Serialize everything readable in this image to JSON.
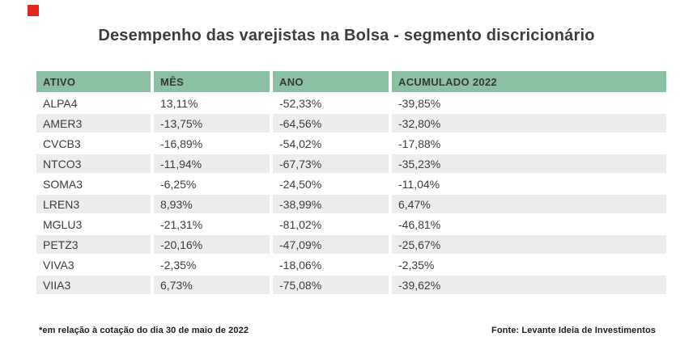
{
  "title": "Desempenho das varejistas na Bolsa - segmento discricionário",
  "brand": {
    "logo_color": "#e3261f"
  },
  "colors": {
    "header_bg": "#8cc0a2",
    "stripe_bg": "#ededed",
    "text": "#3b3b3b",
    "background": "#ffffff"
  },
  "chart_data": {
    "type": "table",
    "title": "Desempenho das varejistas na Bolsa - segmento discricionário",
    "columns": [
      "ATIVO",
      "MÊS",
      "ANO",
      "ACUMULADO 2022"
    ],
    "rows": [
      [
        "ALPA4",
        "13,11%",
        "-52,33%",
        "-39,85%"
      ],
      [
        "AMER3",
        "-13,75%",
        "-64,56%",
        "-32,80%"
      ],
      [
        "CVCB3",
        "-16,89%",
        "-54,02%",
        "-17,88%"
      ],
      [
        "NTCO3",
        "-11,94%",
        "-67,73%",
        "-35,23%"
      ],
      [
        "SOMA3",
        "-6,25%",
        "-24,50%",
        "-11,04%"
      ],
      [
        "LREN3",
        "8,93%",
        "-38,99%",
        "6,47%"
      ],
      [
        "MGLU3",
        "-21,31%",
        "-81,02%",
        "-46,81%"
      ],
      [
        "PETZ3",
        "-20,16%",
        "-47,09%",
        "-25,67%"
      ],
      [
        "VIVA3",
        "-2,35%",
        "-18,06%",
        "-2,35%"
      ],
      [
        "VIIA3",
        "6,73%",
        "-75,08%",
        "-39,62%"
      ]
    ],
    "categories": [
      "ALPA4",
      "AMER3",
      "CVCB3",
      "NTCO3",
      "SOMA3",
      "LREN3",
      "MGLU3",
      "PETZ3",
      "VIVA3",
      "VIIA3"
    ],
    "series": [
      {
        "name": "MÊS",
        "values": [
          13.11,
          -13.75,
          -16.89,
          -11.94,
          -6.25,
          8.93,
          -21.31,
          -20.16,
          -2.35,
          6.73
        ]
      },
      {
        "name": "ANO",
        "values": [
          -52.33,
          -64.56,
          -54.02,
          -67.73,
          -24.5,
          -38.99,
          -81.02,
          -47.09,
          -18.06,
          -75.08
        ]
      },
      {
        "name": "ACUMULADO 2022",
        "values": [
          -39.85,
          -32.8,
          -17.88,
          -35.23,
          -11.04,
          6.47,
          -46.81,
          -25.67,
          -2.35,
          -39.62
        ]
      }
    ]
  },
  "footer": {
    "note": "*em relação à cotação do dia 30 de maio de 2022",
    "source": "Fonte: Levante Ideia de Investimentos"
  }
}
